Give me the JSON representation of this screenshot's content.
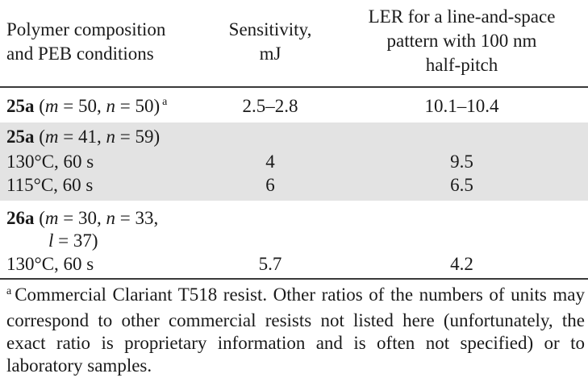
{
  "header": {
    "col1_line1": "Polymer composition",
    "col1_line2": "and PEB conditions",
    "col2_line1": "Sensitivity,",
    "col2_line2": "mJ",
    "col3_line1": "LER for a line-and-space",
    "col3_line2": "pattern with 100 nm",
    "col3_line3": "half-pitch"
  },
  "rows": [
    {
      "id": "25a",
      "params_prefix": " (",
      "m_var": "m",
      "m_val": " = 50, ",
      "n_var": "n",
      "n_val": " = 50)",
      "footnote_mark": "a",
      "sensitivity": "2.5–2.8",
      "ler": "10.1–10.4"
    },
    {
      "id": "25a",
      "params_prefix": " (",
      "m_var": "m",
      "m_val": " = 41, ",
      "n_var": "n",
      "n_val": " = 59)",
      "sub": [
        {
          "condition": "130°C, 60 s",
          "sensitivity": "4",
          "ler": "9.5"
        },
        {
          "condition": "115°C, 60 s",
          "sensitivity": "6",
          "ler": "6.5"
        }
      ]
    },
    {
      "id": "26a",
      "params_prefix": " (",
      "m_var": "m",
      "m_val": " = 30, ",
      "n_var": "n",
      "n_val": " = 33,",
      "l_var": "l",
      "l_val": " = 37)",
      "sub": [
        {
          "condition": "130°C, 60 s",
          "sensitivity": "5.7",
          "ler": "4.2"
        }
      ]
    }
  ],
  "footnote": {
    "mark": "a",
    "text": "Commercial Clariant T518 resist. Other ratios of the numbers of units may correspond to other commercial resists not listed here (unfortunately, the exact ratio is proprietary information and is often not specified) or to laboratory samples."
  },
  "colors": {
    "shade": "#e3e3e3",
    "rule": "#3a3a3a",
    "text": "#1a1a1a"
  }
}
